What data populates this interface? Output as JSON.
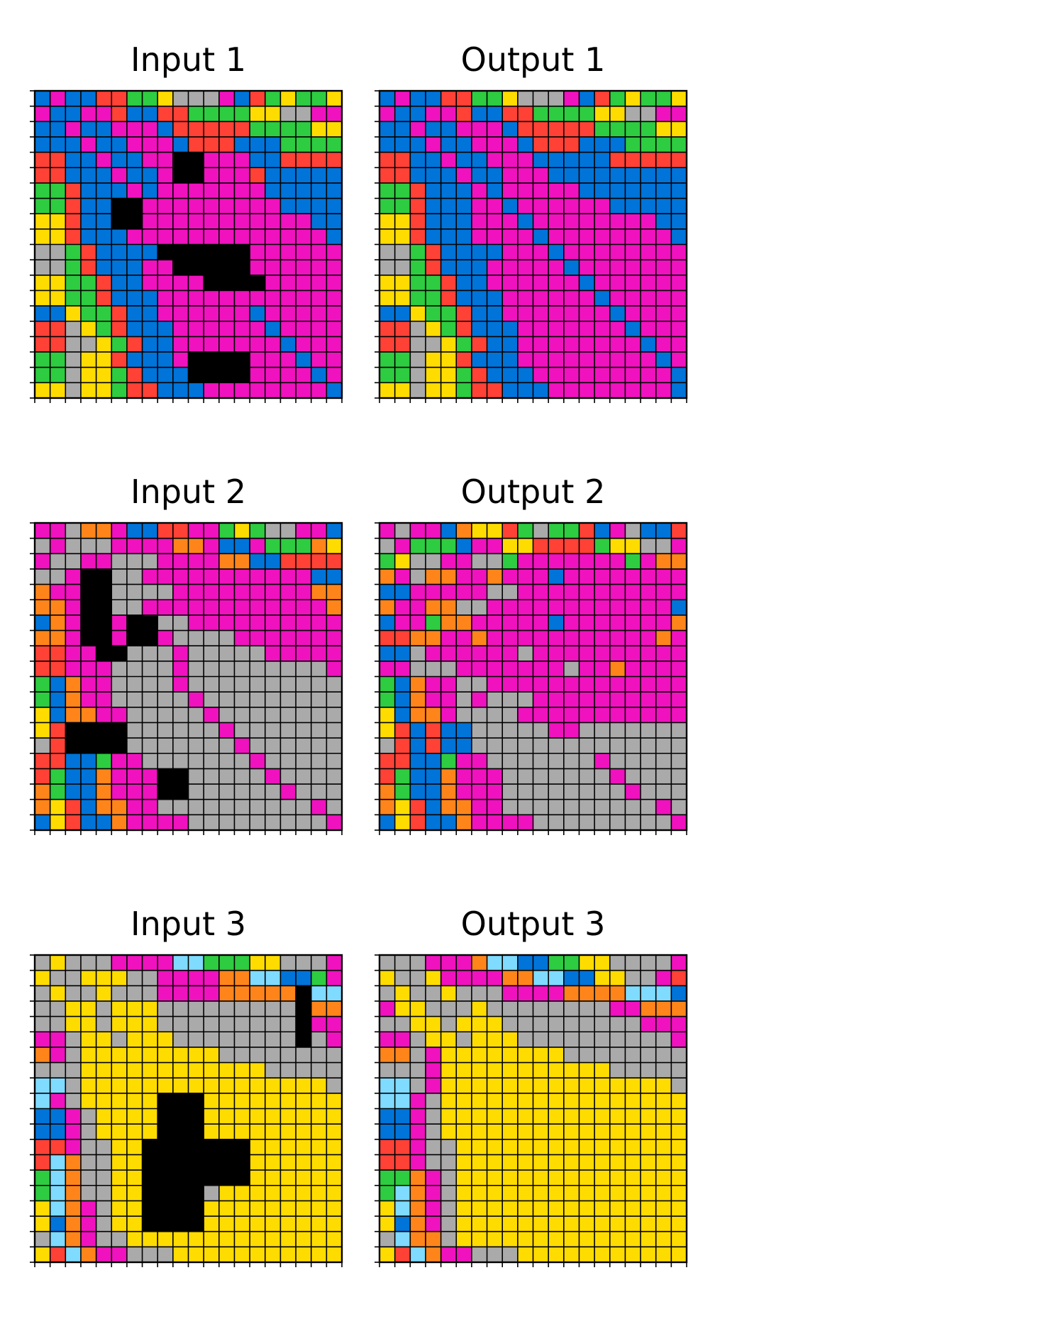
{
  "palette": {
    "0": "#000000",
    "1": "#0074D9",
    "2": "#FF4136",
    "3": "#2ECC40",
    "4": "#FFDC00",
    "5": "#AAAAAA",
    "6": "#F012BE",
    "7": "#FF851B",
    "8": "#7FDBFF"
  },
  "panels": [
    {
      "title": "Input 1",
      "grid": [
        "16112233455561234334",
        "61166211223333445566",
        "11611666122222333344",
        "11161166612221113333",
        "22116116600666112222",
        "22111611600666211111",
        "33211161666666611111",
        "33211006666666661111",
        "44211006666666666611",
        "44211166666666666661",
        "55321111000000666666",
        "55321116600000666666",
        "44332116666000066666",
        "44332111666666666666",
        "11433211666666166666",
        "22543211166666616666",
        "22554321166666661666",
        "33544211160000666166",
        "33544321110000666616",
        "44544322111666666661"
      ]
    },
    {
      "title": "Output 1",
      "grid": [
        "16112233455561234334",
        "61166211223333445566",
        "11611666122222333344",
        "11161166612221113333",
        "22116116661111122222",
        "22111611666111111111",
        "33211161666661111111",
        "33211166166666611111",
        "44211166616666666611",
        "44211166661666666661",
        "55321111666166666666",
        "55321116666616666666",
        "44332116666661666666",
        "44332111666666166666",
        "11433211666666616666",
        "22543211166666661666",
        "22554321166666666166",
        "33544211166666666616",
        "33544321116666666661",
        "44544322111666666661"
      ]
    },
    {
      "title": "Input 2",
      "grid": [
        "66577611226634355661",
        "56555666677611633374",
        "65566555666677112222",
        "55600556666666666611",
        "76600555566666666677",
        "77600556666666666667",
        "17600600556666666666",
        "77600600655556666666",
        "22660055565555566666",
        "22666555565555555556",
        "31766555565555555555",
        "31766555556555555555",
        "41776655555655555555",
        "42000055555565555555",
        "52000055555556555555",
        "22113665555555655555",
        "23117666005555565555",
        "73117666005555556555",
        "74217766555555555565",
        "14211766665555555556"
      ]
    },
    {
      "title": "Output 2",
      "grid": [
        "65661744235332165112",
        "56333166442222344556",
        "34556655366666663677",
        "76577667666166666666",
        "11666665566666666666",
        "76677556666666666661",
        "16637766666166666667",
        "22776676666666666676",
        "11566666656666666666",
        "66555666666656676666",
        "31766556666666666666",
        "31766565556666666666",
        "41776555566666666666",
        "42121155555665555555",
        "52121155555555555555",
        "22113665555555655555",
        "23117666555555565555",
        "73117666555555556555",
        "74217766555555555565",
        "14211766665555555556"
      ]
    },
    {
      "title": "Output 3",
      "grid": [
        "55566678811334455556",
        "45546666778811445562",
        "54554555666677778881",
        "64455545555555566777",
        "55445444555555555666",
        "66544544455555555556",
        "77564444444455555555",
        "55564444444444455555",
        "88564444444444444445",
        "88654444444444444444",
        "11654444444444444444",
        "11654444444444444444",
        "22655444444444444444",
        "22655444444444444444",
        "33765444444444444444",
        "38765444444444444444",
        "48765444444444444444",
        "41765444444444444444",
        "58775444444444444444",
        "42876655544444444444"
      ]
    }
  ]
}
